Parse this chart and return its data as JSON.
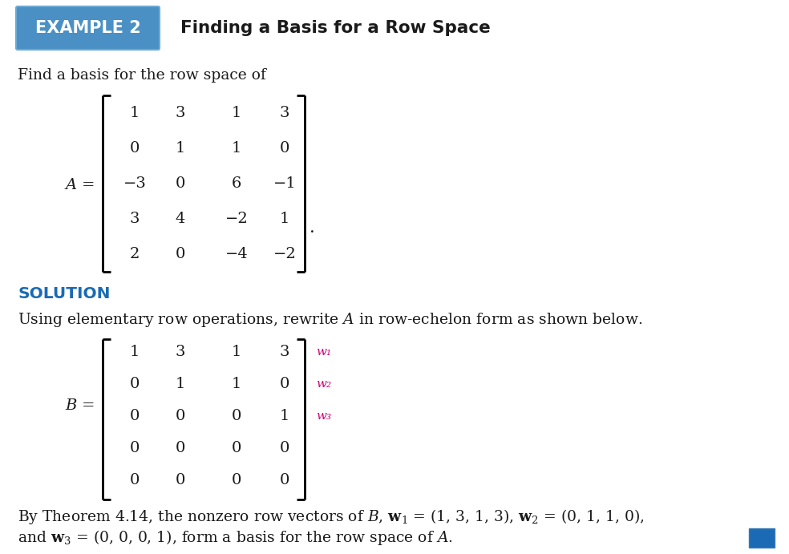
{
  "background_color": "#ffffff",
  "header_box_color": "#4a90c4",
  "header_text": "EXAMPLE 2",
  "header_title": "Finding a Basis for a Row Space",
  "solution_color": "#1a6ab5",
  "pink_color": "#cc0077",
  "body_text_color": "#1a1a1a",
  "matrix_A": [
    [
      "1",
      "3",
      "1",
      "3"
    ],
    [
      "0",
      "1",
      "1",
      "0"
    ],
    [
      "−3",
      "0",
      "6",
      "−1"
    ],
    [
      "3",
      "4",
      "−2",
      "1"
    ],
    [
      "2",
      "0",
      "−4",
      "−2"
    ]
  ],
  "matrix_B": [
    [
      "1",
      "3",
      "1",
      "3"
    ],
    [
      "0",
      "1",
      "1",
      "0"
    ],
    [
      "0",
      "0",
      "0",
      "1"
    ],
    [
      "0",
      "0",
      "0",
      "0"
    ],
    [
      "0",
      "0",
      "0",
      "0"
    ]
  ],
  "w_labels": [
    "w₁",
    "w₂",
    "w₃"
  ],
  "find_text": "Find a basis for the row space of",
  "solution_text": "SOLUTION",
  "using_text": "Using elementary row operations, rewrite ",
  "bottom_line1": "By Theorem 4.14, the nonzero row vectors of ",
  "bottom_line2": "and "
}
